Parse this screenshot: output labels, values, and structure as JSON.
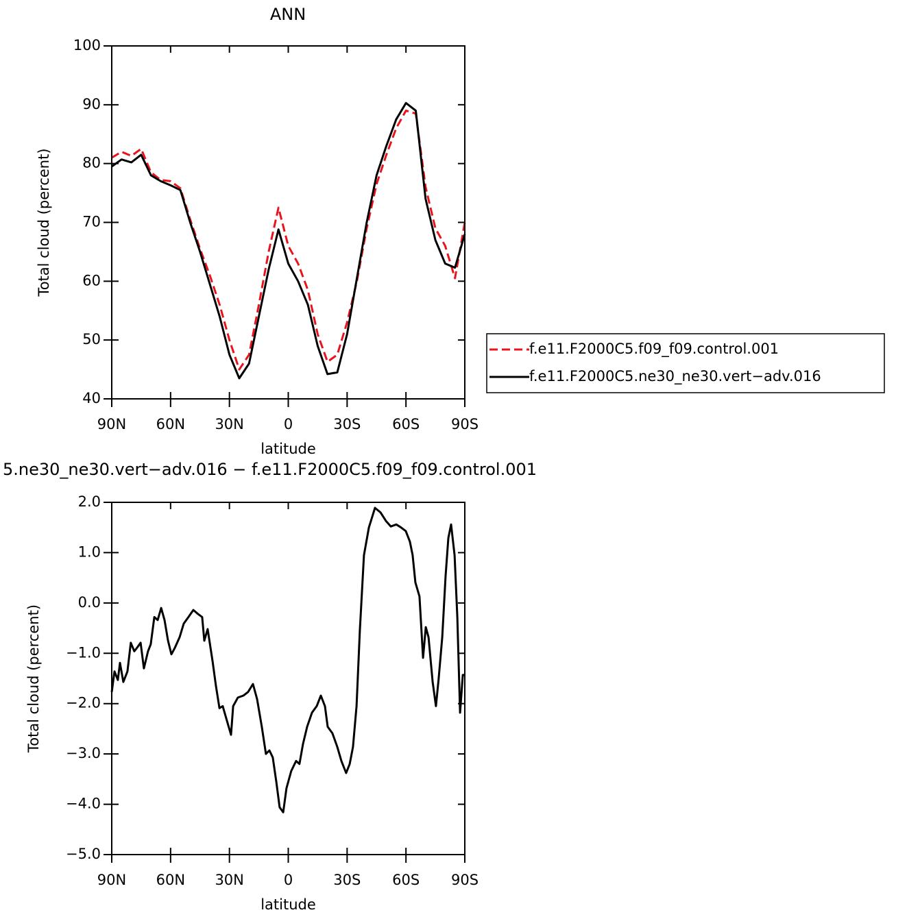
{
  "chart_data": [
    {
      "type": "line",
      "title": "ANN",
      "xlabel": "latitude",
      "ylabel": "Total cloud (percent)",
      "x": [
        90,
        85,
        80,
        75,
        70,
        65,
        60,
        55,
        50,
        45,
        40,
        35,
        30,
        25,
        20,
        15,
        10,
        5,
        0,
        -5,
        -10,
        -15,
        -20,
        -25,
        -30,
        -35,
        -40,
        -45,
        -50,
        -55,
        -60,
        -65,
        -70,
        -75,
        -80,
        -85,
        -90
      ],
      "series": [
        {
          "name": "f.e11.F2000C5.f09_f09.control.001",
          "color": "#e8141c",
          "linestyle": "dashed",
          "values": [
            81,
            82,
            81.3,
            82.5,
            78.5,
            77.2,
            77,
            75.8,
            70.5,
            65.5,
            61,
            56,
            50,
            45,
            47.5,
            56,
            65,
            72.5,
            66,
            63,
            58.5,
            51,
            46.3,
            47.5,
            53,
            60,
            69,
            76.5,
            81.5,
            86,
            89,
            88.5,
            76,
            69,
            66,
            60.5,
            70
          ]
        },
        {
          "name": "f.e11.F2000C5.ne30_ne30.vert−adv.016",
          "color": "#000000",
          "linestyle": "solid",
          "values": [
            79.5,
            80.7,
            80.2,
            81.5,
            78,
            77,
            76.3,
            75.5,
            70,
            65,
            59.5,
            54,
            47.5,
            43.5,
            46,
            54,
            62,
            68.8,
            63,
            60,
            56,
            49,
            44.2,
            44.5,
            51,
            60.5,
            70,
            78,
            83,
            87.5,
            90.3,
            89,
            74,
            67,
            63,
            62.3,
            68
          ]
        }
      ],
      "xlim": [
        90,
        -90
      ],
      "ylim": [
        40,
        100
      ],
      "xticks": [
        {
          "value": 90,
          "label": "90N"
        },
        {
          "value": 60,
          "label": "60N"
        },
        {
          "value": 30,
          "label": "30N"
        },
        0,
        {
          "value": -30,
          "label": "30S"
        },
        {
          "value": -60,
          "label": "60S"
        },
        {
          "value": -90,
          "label": "90S"
        }
      ],
      "yticks": [
        40,
        50,
        60,
        70,
        80,
        90,
        100
      ],
      "legend": "right"
    },
    {
      "type": "line",
      "title": "5.ne30_ne30.vert−adv.016 − f.e11.F2000C5.f09_f09.control.001",
      "xlabel": "latitude",
      "ylabel": "Total cloud (percent)",
      "x": [
        90,
        88.6,
        86.9,
        85.8,
        84.1,
        82.0,
        80.3,
        78.5,
        77.1,
        75.3,
        73.6,
        71.5,
        70.1,
        68.3,
        66.6,
        64.8,
        63.1,
        61.3,
        59.6,
        57.8,
        55.4,
        53.3,
        50.9,
        48.4,
        46.3,
        43.9,
        42.8,
        41.1,
        38.6,
        36.9,
        35.1,
        33.4,
        30.9,
        29.2,
        28.1,
        25.7,
        22.9,
        20.5,
        18.0,
        15.9,
        13.5,
        11.4,
        9.6,
        7.9,
        6.1,
        4.4,
        2.6,
        0.9,
        -1.5,
        -4.0,
        -5.7,
        -7.5,
        -9.6,
        -12.1,
        -14.5,
        -16.6,
        -18.7,
        -20.1,
        -22.5,
        -25.0,
        -27.1,
        -29.5,
        -31.3,
        -33.0,
        -34.8,
        -36.5,
        -38.6,
        -41.1,
        -44.2,
        -47.0,
        -49.8,
        -52.3,
        -55.1,
        -57.5,
        -59.9,
        -62.0,
        -63.4,
        -64.8,
        -66.9,
        -68.7,
        -70.1,
        -71.5,
        -73.6,
        -75.3,
        -76.7,
        -78.5,
        -80.2,
        -81.6,
        -83.0,
        -84.8,
        -86.2,
        -87.6,
        -89.0,
        -90
      ],
      "series": [
        {
          "color": "#000000",
          "values": [
            -1.77,
            -1.36,
            -1.53,
            -1.19,
            -1.57,
            -1.36,
            -0.79,
            -0.96,
            -0.89,
            -0.79,
            -1.3,
            -0.96,
            -0.82,
            -0.28,
            -0.34,
            -0.1,
            -0.34,
            -0.75,
            -1.02,
            -0.89,
            -0.68,
            -0.41,
            -0.28,
            -0.14,
            -0.21,
            -0.28,
            -0.75,
            -0.52,
            -1.16,
            -1.64,
            -2.09,
            -2.05,
            -2.39,
            -2.62,
            -2.05,
            -1.88,
            -1.84,
            -1.77,
            -1.61,
            -1.91,
            -2.46,
            -3.0,
            -2.93,
            -3.07,
            -3.55,
            -4.06,
            -4.16,
            -3.68,
            -3.34,
            -3.14,
            -3.2,
            -2.8,
            -2.46,
            -2.18,
            -2.05,
            -1.84,
            -2.05,
            -2.46,
            -2.59,
            -2.86,
            -3.14,
            -3.38,
            -3.2,
            -2.86,
            -2.05,
            -0.55,
            0.95,
            1.5,
            1.89,
            1.8,
            1.63,
            1.52,
            1.56,
            1.5,
            1.43,
            1.22,
            0.95,
            0.41,
            0.13,
            -1.09,
            -0.48,
            -0.68,
            -1.57,
            -2.05,
            -1.5,
            -0.68,
            0.54,
            1.29,
            1.56,
            0.95,
            -0.28,
            -2.18,
            -1.43,
            -1.43
          ]
        }
      ],
      "xlim": [
        90,
        -90
      ],
      "ylim": [
        -5,
        2
      ],
      "xticks": [
        {
          "value": 90,
          "label": "90N"
        },
        {
          "value": 60,
          "label": "60N"
        },
        {
          "value": 30,
          "label": "30N"
        },
        0,
        {
          "value": -30,
          "label": "30S"
        },
        {
          "value": -60,
          "label": "60S"
        },
        {
          "value": -90,
          "label": "90S"
        }
      ],
      "yticks": [
        {
          "value": -5,
          "label": "−5.0"
        },
        {
          "value": -4,
          "label": "−4.0"
        },
        {
          "value": -3,
          "label": "−3.0"
        },
        {
          "value": -2,
          "label": "−2.0"
        },
        {
          "value": -1,
          "label": "−1.0"
        },
        {
          "value": 0,
          "label": "0.0"
        },
        {
          "value": 1,
          "label": "1.0"
        },
        {
          "value": 2,
          "label": "2.0"
        }
      ]
    }
  ]
}
